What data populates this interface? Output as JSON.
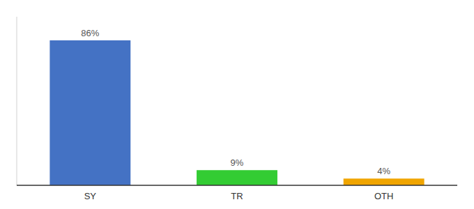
{
  "chart_data": {
    "type": "bar",
    "categories": [
      "SY",
      "TR",
      "OTH"
    ],
    "values": [
      86,
      9,
      4
    ],
    "value_labels": [
      "86%",
      "9%",
      "4%"
    ],
    "colors": [
      "#4472c4",
      "#33cc33",
      "#f0a500"
    ],
    "ylim": [
      0,
      100
    ],
    "data_labels": true,
    "tick_labels": "x"
  }
}
